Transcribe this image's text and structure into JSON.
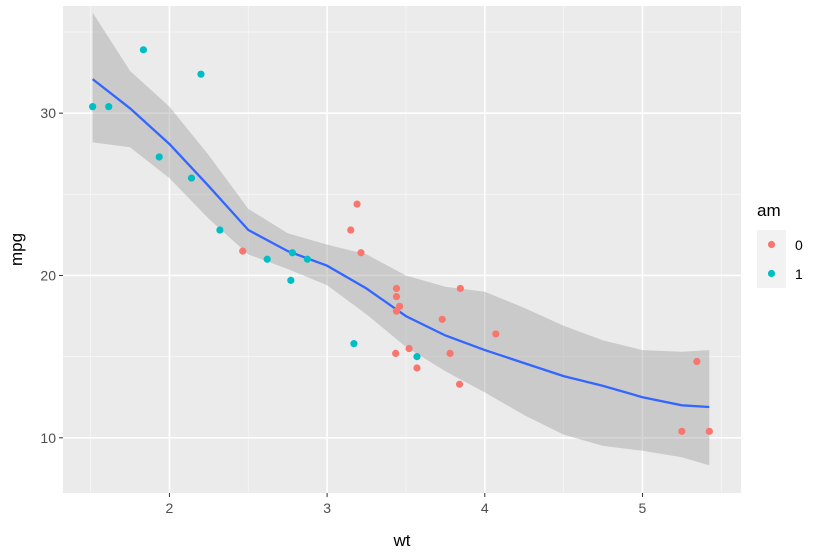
{
  "chart_data": {
    "type": "scatter",
    "xlabel": "wt",
    "ylabel": "mpg",
    "xlim": [
      1.325,
      5.625
    ],
    "ylim": [
      6.6,
      36.6
    ],
    "x_ticks": [
      2,
      3,
      4,
      5
    ],
    "x_tick_labels": [
      "2",
      "3",
      "4",
      "5"
    ],
    "y_ticks": [
      10,
      20,
      30
    ],
    "y_tick_labels": [
      "10",
      "20",
      "30"
    ],
    "grid": true,
    "legend_position": "right",
    "legend": {
      "title": "am",
      "entries": [
        {
          "label": "0",
          "color": "#F8766D"
        },
        {
          "label": "1",
          "color": "#00BFC4"
        }
      ]
    },
    "series": [
      {
        "name": "0",
        "color": "#F8766D",
        "x": [
          2.465,
          3.44,
          3.46,
          3.57,
          3.19,
          3.15,
          3.44,
          3.44,
          4.07,
          3.73,
          3.78,
          5.25,
          5.424,
          5.345,
          3.215,
          3.52,
          3.435,
          3.84,
          3.845
        ],
        "y": [
          21.5,
          18.7,
          18.1,
          14.3,
          24.4,
          22.8,
          19.2,
          17.8,
          16.4,
          17.3,
          15.2,
          10.4,
          10.4,
          14.7,
          21.4,
          15.5,
          15.2,
          13.3,
          19.2
        ]
      },
      {
        "name": "1",
        "color": "#00BFC4",
        "x": [
          2.62,
          2.875,
          2.32,
          2.2,
          1.615,
          1.835,
          1.935,
          2.14,
          1.513,
          3.17,
          2.77,
          2.78,
          3.57
        ],
        "y": [
          21.0,
          21.0,
          22.8,
          32.4,
          30.4,
          33.9,
          27.3,
          26.0,
          30.4,
          15.8,
          19.7,
          21.4,
          15.0
        ]
      }
    ],
    "smooth": {
      "color": "#3366FF",
      "ribbon_color": "#999999",
      "x": [
        1.513,
        1.75,
        2.0,
        2.25,
        2.5,
        2.75,
        3.0,
        3.25,
        3.5,
        3.75,
        4.0,
        4.25,
        4.5,
        4.75,
        5.0,
        5.25,
        5.424
      ],
      "y": [
        32.1,
        30.3,
        28.1,
        25.5,
        22.8,
        21.5,
        20.6,
        19.2,
        17.5,
        16.3,
        15.4,
        14.6,
        13.8,
        13.2,
        12.5,
        12.0,
        11.9
      ],
      "lower": [
        28.2,
        27.9,
        26.0,
        23.5,
        21.3,
        20.4,
        19.4,
        17.6,
        15.6,
        14.1,
        12.8,
        11.4,
        10.2,
        9.5,
        9.2,
        8.8,
        8.3
      ],
      "upper": [
        36.2,
        32.6,
        30.4,
        27.4,
        24.1,
        22.6,
        21.9,
        21.3,
        20.0,
        19.3,
        19.0,
        18.0,
        16.9,
        16.0,
        15.4,
        15.3,
        15.4
      ]
    }
  }
}
